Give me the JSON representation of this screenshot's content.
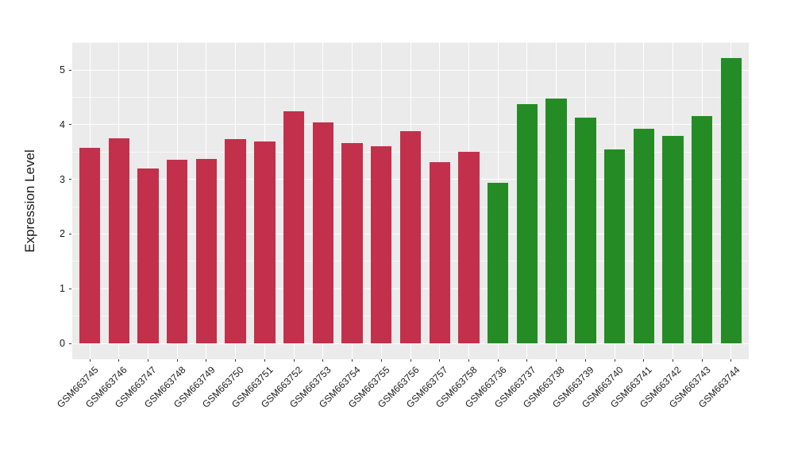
{
  "chart_data": {
    "type": "bar",
    "title": "",
    "ylabel": "Expression Level",
    "yticks": [
      "0",
      "1",
      "2",
      "3",
      "4",
      "5"
    ],
    "y_range": [
      -0.29,
      5.51
    ],
    "y_minor_step": 0.5,
    "grid": "major-and-minor-white",
    "legend": "none",
    "colors": {
      "panel_bg": "#EBEBEB",
      "gridline": "#FFFFFF",
      "axis_text": "#1A1A1A",
      "tick_mark": "#333333",
      "group1": "#C3304B",
      "group2": "#258C25"
    },
    "bar_width_frac": 0.72,
    "series": [
      {
        "name": "group1",
        "color": "#C3304B",
        "categories": [
          "GSM663745",
          "GSM663746",
          "GSM663747",
          "GSM663748",
          "GSM663749",
          "GSM663750",
          "GSM663751",
          "GSM663752",
          "GSM663753",
          "GSM663754",
          "GSM663755",
          "GSM663756",
          "GSM663757",
          "GSM663758"
        ],
        "values": [
          3.58,
          3.75,
          3.2,
          3.36,
          3.38,
          3.73,
          3.69,
          4.25,
          4.04,
          3.66,
          3.6,
          3.88,
          3.31,
          3.5
        ]
      },
      {
        "name": "group2",
        "color": "#258C25",
        "categories": [
          "GSM663736",
          "GSM663737",
          "GSM663738",
          "GSM663739",
          "GSM663740",
          "GSM663741",
          "GSM663742",
          "GSM663743",
          "GSM663744"
        ],
        "values": [
          2.93,
          4.38,
          4.48,
          4.13,
          3.55,
          3.93,
          3.8,
          4.16,
          5.22
        ]
      }
    ]
  }
}
